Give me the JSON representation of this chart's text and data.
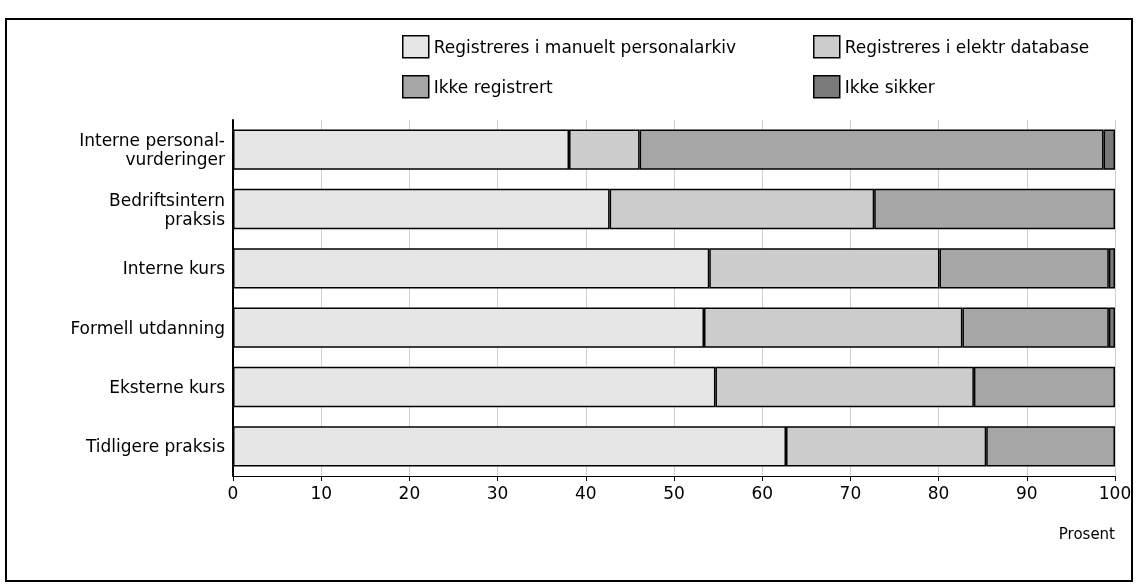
{
  "chart_data": {
    "type": "bar",
    "orientation": "horizontal",
    "stacked": true,
    "categories": [
      "Interne personal-\nvurderinger",
      "Bedriftsintern\npraksis",
      "Interne kurs",
      "Formell utdanning",
      "Eksterne kurs",
      "Tidligere praksis"
    ],
    "series": [
      {
        "name": "Registreres i manuelt personalarkiv",
        "color": "#e6e6e6",
        "values": [
          38.1,
          42.7,
          54.0,
          53.4,
          54.7,
          62.7
        ]
      },
      {
        "name": "Registreres i elektr database",
        "color": "#cccccc",
        "values": [
          8.0,
          30.0,
          26.1,
          29.3,
          29.3,
          22.7
        ]
      },
      {
        "name": "Ikke registrert",
        "color": "#a6a6a6",
        "values": [
          52.6,
          27.3,
          19.2,
          16.6,
          16.0,
          14.6
        ]
      },
      {
        "name": "Ikke sikker",
        "color": "#7a7a7a",
        "values": [
          1.3,
          null,
          0.7,
          0.7,
          null,
          null
        ]
      }
    ],
    "xlabel": "Prosent",
    "xlim": [
      0,
      100
    ],
    "xticks": [
      0,
      10,
      20,
      30,
      40,
      50,
      60,
      70,
      80,
      90,
      100
    ],
    "grid": "x",
    "legend": "top right"
  }
}
